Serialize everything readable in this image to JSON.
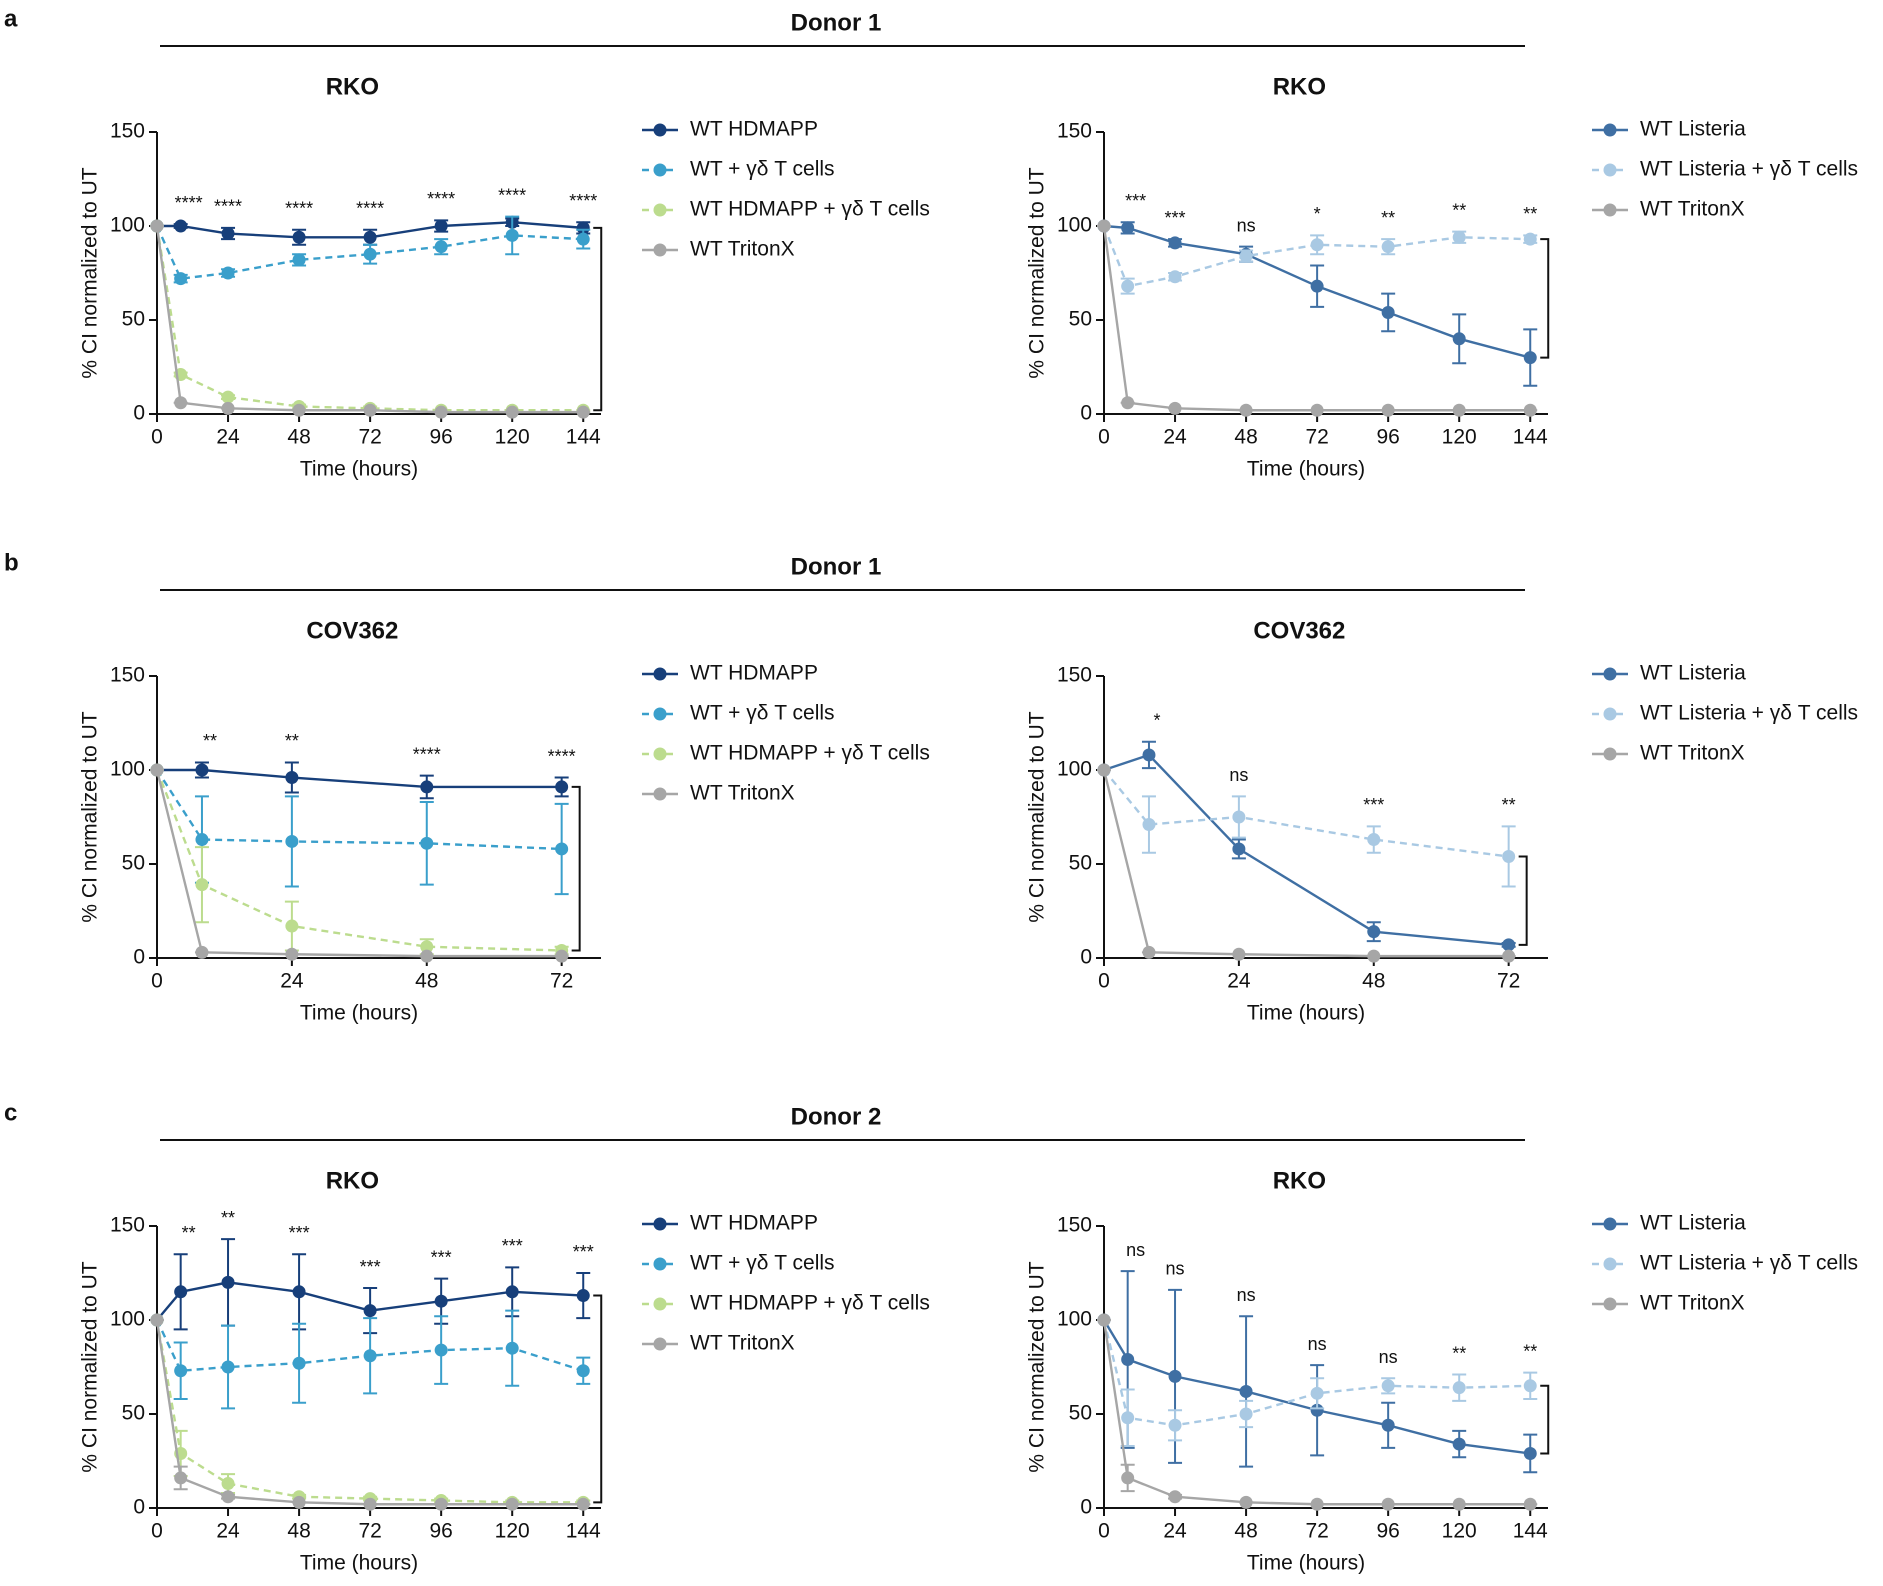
{
  "panels": [
    {
      "label": "a",
      "heading": "Donor 1"
    },
    {
      "label": "b",
      "heading": "Donor 1"
    },
    {
      "label": "c",
      "heading": "Donor 2"
    }
  ],
  "chart_data": [
    {
      "type": "line",
      "title": "RKO",
      "xlabel": "Time (hours)",
      "ylabel": "% CI normalized to UT",
      "x": [
        0,
        8,
        24,
        48,
        72,
        96,
        120,
        144
      ],
      "xlim": [
        0,
        150
      ],
      "xticks": [
        0,
        24,
        48,
        72,
        96,
        120,
        144
      ],
      "ylim": [
        0,
        150
      ],
      "yticks": [
        0,
        50,
        100,
        150
      ],
      "significance": [
        null,
        "****",
        "****",
        "****",
        "****",
        "****",
        "****",
        "****"
      ],
      "series": [
        {
          "name": "WT HDMAPP",
          "color": "#173f7a",
          "dashed": false,
          "values": [
            100,
            100,
            96,
            94,
            94,
            100,
            102,
            99
          ],
          "errors": [
            0,
            1,
            3,
            4,
            4,
            3,
            2,
            3
          ]
        },
        {
          "name": "WT + γδ T cells",
          "color": "#3a9fcb",
          "dashed": true,
          "values": [
            100,
            72,
            75,
            82,
            85,
            89,
            95,
            93
          ],
          "errors": [
            0,
            2,
            2,
            3,
            5,
            4,
            10,
            5
          ]
        },
        {
          "name": "WT HDMAPP + γδ T cells",
          "color": "#bcdc8e",
          "dashed": true,
          "values": [
            100,
            21,
            9,
            4,
            3,
            2,
            2,
            2
          ],
          "errors": [
            0,
            1,
            1,
            1,
            1,
            0,
            0,
            0
          ]
        },
        {
          "name": "WT TritonX",
          "color": "#a6a6a6",
          "dashed": false,
          "values": [
            100,
            6,
            3,
            2,
            2,
            1,
            1,
            1
          ],
          "errors": [
            0,
            0,
            0,
            0,
            0,
            0,
            0,
            0
          ]
        }
      ]
    },
    {
      "type": "line",
      "title": "RKO",
      "xlabel": "Time (hours)",
      "ylabel": "% CI normalized to UT",
      "x": [
        0,
        8,
        24,
        48,
        72,
        96,
        120,
        144
      ],
      "xlim": [
        0,
        150
      ],
      "xticks": [
        0,
        24,
        48,
        72,
        96,
        120,
        144
      ],
      "ylim": [
        0,
        150
      ],
      "yticks": [
        0,
        50,
        100,
        150
      ],
      "significance": [
        null,
        "***",
        "***",
        "ns",
        "*",
        "**",
        "**",
        "**"
      ],
      "series": [
        {
          "name": "WT Listeria",
          "color": "#3f6fa3",
          "dashed": false,
          "values": [
            100,
            99,
            91,
            85,
            68,
            54,
            40,
            30
          ],
          "errors": [
            0,
            3,
            2,
            4,
            11,
            10,
            13,
            15
          ]
        },
        {
          "name": "WT Listeria + γδ T cells",
          "color": "#a9c9e3",
          "dashed": true,
          "values": [
            100,
            68,
            73,
            84,
            90,
            89,
            94,
            93
          ],
          "errors": [
            0,
            4,
            2,
            3,
            5,
            4,
            3,
            2
          ]
        },
        {
          "name": "WT TritonX",
          "color": "#a6a6a6",
          "dashed": false,
          "values": [
            100,
            6,
            3,
            2,
            2,
            2,
            2,
            2
          ],
          "errors": [
            0,
            0,
            0,
            0,
            0,
            0,
            0,
            0
          ]
        }
      ]
    },
    {
      "type": "line",
      "title": "COV362",
      "xlabel": "Time (hours)",
      "ylabel": "% CI normalized to UT",
      "x": [
        0,
        8,
        24,
        48,
        72
      ],
      "xlim": [
        0,
        79
      ],
      "xticks": [
        0,
        24,
        48,
        72
      ],
      "ylim": [
        0,
        150
      ],
      "yticks": [
        0,
        50,
        100,
        150
      ],
      "significance": [
        null,
        "**",
        "**",
        "****",
        "****"
      ],
      "series": [
        {
          "name": "WT HDMAPP",
          "color": "#173f7a",
          "dashed": false,
          "values": [
            100,
            100,
            96,
            91,
            91
          ],
          "errors": [
            0,
            4,
            8,
            6,
            5
          ]
        },
        {
          "name": "WT + γδ T cells",
          "color": "#3a9fcb",
          "dashed": true,
          "values": [
            100,
            63,
            62,
            61,
            58
          ],
          "errors": [
            0,
            23,
            24,
            22,
            24
          ]
        },
        {
          "name": "WT HDMAPP + γδ T cells",
          "color": "#bcdc8e",
          "dashed": true,
          "values": [
            100,
            39,
            17,
            6,
            4
          ],
          "errors": [
            0,
            20,
            13,
            4,
            2
          ]
        },
        {
          "name": "WT TritonX",
          "color": "#a6a6a6",
          "dashed": false,
          "values": [
            100,
            3,
            2,
            1,
            1
          ],
          "errors": [
            0,
            0,
            0,
            0,
            0
          ]
        }
      ]
    },
    {
      "type": "line",
      "title": "COV362",
      "xlabel": "Time (hours)",
      "ylabel": "% CI normalized to UT",
      "x": [
        0,
        8,
        24,
        48,
        72
      ],
      "xlim": [
        0,
        79
      ],
      "xticks": [
        0,
        24,
        48,
        72
      ],
      "ylim": [
        0,
        150
      ],
      "yticks": [
        0,
        50,
        100,
        150
      ],
      "significance": [
        null,
        "*",
        "ns",
        "***",
        "**"
      ],
      "series": [
        {
          "name": "WT Listeria",
          "color": "#3f6fa3",
          "dashed": false,
          "values": [
            100,
            108,
            58,
            14,
            7
          ],
          "errors": [
            0,
            7,
            5,
            5,
            1
          ]
        },
        {
          "name": "WT Listeria + γδ T cells",
          "color": "#a9c9e3",
          "dashed": true,
          "values": [
            100,
            71,
            75,
            63,
            54
          ],
          "errors": [
            0,
            15,
            11,
            7,
            16
          ]
        },
        {
          "name": "WT TritonX",
          "color": "#a6a6a6",
          "dashed": false,
          "values": [
            100,
            3,
            2,
            1,
            1
          ],
          "errors": [
            0,
            0,
            0,
            0,
            0
          ]
        }
      ]
    },
    {
      "type": "line",
      "title": "RKO",
      "xlabel": "Time (hours)",
      "ylabel": "% CI normalized to UT",
      "x": [
        0,
        8,
        24,
        48,
        72,
        96,
        120,
        144
      ],
      "xlim": [
        0,
        150
      ],
      "xticks": [
        0,
        24,
        48,
        72,
        96,
        120,
        144
      ],
      "ylim": [
        0,
        150
      ],
      "yticks": [
        0,
        50,
        100,
        150
      ],
      "significance": [
        null,
        "**",
        "**",
        "***",
        "***",
        "***",
        "***",
        "***"
      ],
      "series": [
        {
          "name": "WT HDMAPP",
          "color": "#173f7a",
          "dashed": false,
          "values": [
            100,
            115,
            120,
            115,
            105,
            110,
            115,
            113
          ],
          "errors": [
            0,
            20,
            23,
            20,
            12,
            12,
            13,
            12
          ]
        },
        {
          "name": "WT + γδ T cells",
          "color": "#3a9fcb",
          "dashed": true,
          "values": [
            100,
            73,
            75,
            77,
            81,
            84,
            85,
            73
          ],
          "errors": [
            0,
            15,
            22,
            21,
            20,
            18,
            20,
            7
          ]
        },
        {
          "name": "WT HDMAPP + γδ T cells",
          "color": "#bcdc8e",
          "dashed": true,
          "values": [
            100,
            29,
            13,
            6,
            5,
            4,
            3,
            3
          ],
          "errors": [
            0,
            12,
            5,
            1,
            1,
            1,
            1,
            1
          ]
        },
        {
          "name": "WT TritonX",
          "color": "#a6a6a6",
          "dashed": false,
          "values": [
            100,
            16,
            6,
            3,
            2,
            2,
            2,
            2
          ],
          "errors": [
            0,
            6,
            1,
            0,
            0,
            0,
            0,
            0
          ]
        }
      ]
    },
    {
      "type": "line",
      "title": "RKO",
      "xlabel": "Time (hours)",
      "ylabel": "% CI normalized to UT",
      "x": [
        0,
        8,
        24,
        48,
        72,
        96,
        120,
        144
      ],
      "xlim": [
        0,
        150
      ],
      "xticks": [
        0,
        24,
        48,
        72,
        96,
        120,
        144
      ],
      "ylim": [
        0,
        150
      ],
      "yticks": [
        0,
        50,
        100,
        150
      ],
      "significance": [
        null,
        "ns",
        "ns",
        "ns",
        "ns",
        "ns",
        "**",
        "**"
      ],
      "series": [
        {
          "name": "WT Listeria",
          "color": "#3f6fa3",
          "dashed": false,
          "values": [
            100,
            79,
            70,
            62,
            52,
            44,
            34,
            29
          ],
          "errors": [
            0,
            47,
            46,
            40,
            24,
            12,
            7,
            10
          ]
        },
        {
          "name": "WT Listeria + γδ T cells",
          "color": "#a9c9e3",
          "dashed": true,
          "values": [
            100,
            48,
            44,
            50,
            61,
            65,
            64,
            65
          ],
          "errors": [
            0,
            15,
            8,
            7,
            8,
            4,
            7,
            7
          ]
        },
        {
          "name": "WT TritonX",
          "color": "#a6a6a6",
          "dashed": false,
          "values": [
            100,
            16,
            6,
            3,
            2,
            2,
            2,
            2
          ],
          "errors": [
            0,
            7,
            1,
            0,
            0,
            0,
            0,
            0
          ]
        }
      ]
    }
  ]
}
